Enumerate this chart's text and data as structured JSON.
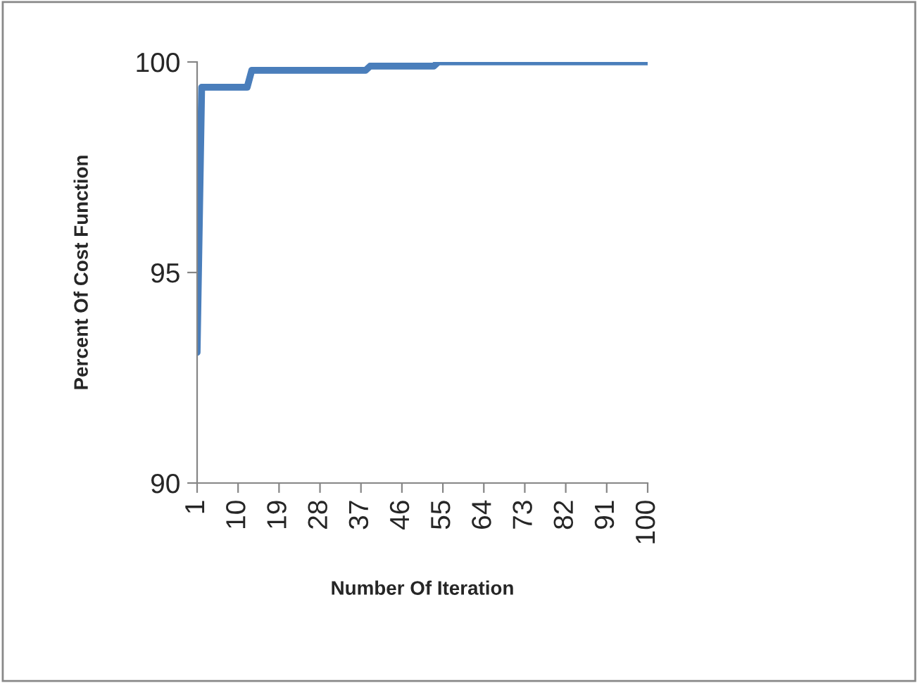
{
  "chart_data": {
    "type": "line",
    "xlabel": "Number Of Iteration",
    "ylabel": "Percent Of Cost Function",
    "series": [
      {
        "color": "#4a7ebb",
        "x": [
          1,
          2,
          12,
          13,
          38,
          39,
          53,
          54,
          100
        ],
        "values": [
          93.1,
          99.4,
          99.4,
          99.8,
          99.8,
          99.9,
          99.9,
          100,
          100
        ]
      }
    ],
    "xlim": [
      1,
      100
    ],
    "xticks": [
      1,
      10,
      19,
      28,
      37,
      46,
      55,
      64,
      73,
      82,
      91,
      100
    ],
    "ylim": [
      90,
      100
    ],
    "yticks": [
      90,
      95,
      100
    ],
    "grid": false,
    "legend": false,
    "marker": "none",
    "line_style": "solid"
  }
}
